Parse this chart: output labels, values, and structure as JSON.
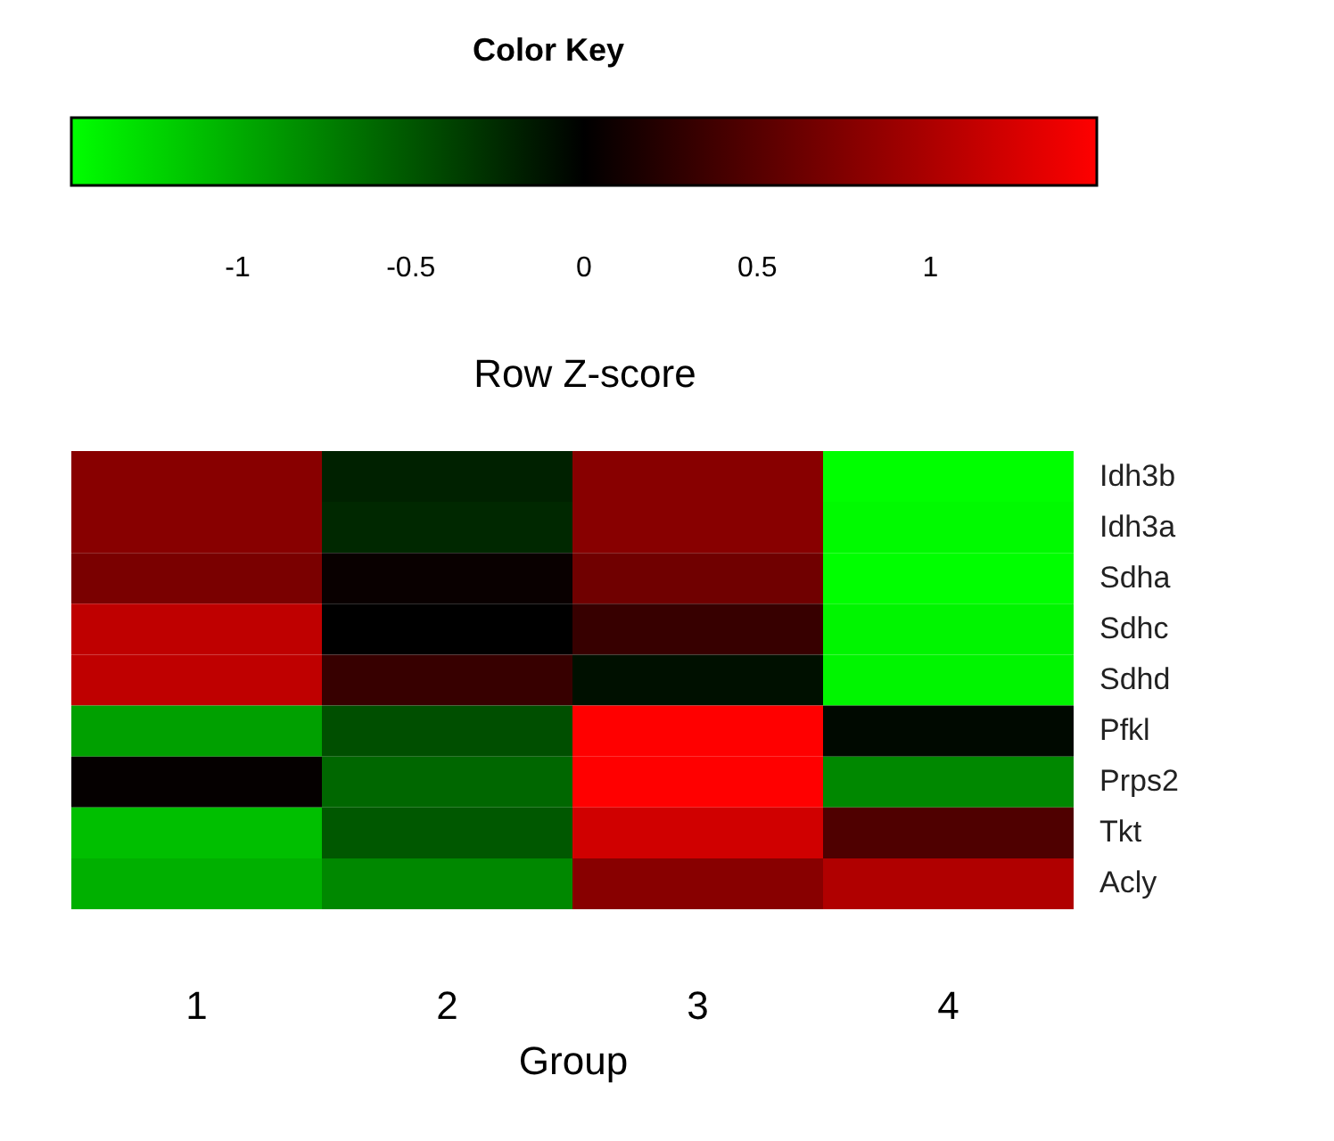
{
  "chart_data": {
    "type": "heatmap",
    "title": "Color Key",
    "clabel": "Row Z-score",
    "xlabel": "Group",
    "categories": [
      "1",
      "2",
      "3",
      "4"
    ],
    "y_categories": [
      "Idh3b",
      "Idh3a",
      "Sdha",
      "Sdhc",
      "Sdhd",
      "Pfkl",
      "Prps2",
      "Tkt",
      "Acly"
    ],
    "cells": [
      [
        0.79,
        -0.19,
        0.79,
        -1.48
      ],
      [
        0.79,
        -0.23,
        0.79,
        -1.45
      ],
      [
        0.71,
        0.05,
        0.65,
        -1.48
      ],
      [
        1.11,
        0,
        0.32,
        -1.42
      ],
      [
        1.11,
        0.32,
        -0.09,
        -1.42
      ],
      [
        -0.93,
        -0.46,
        1.48,
        -0.05
      ],
      [
        0.03,
        -0.6,
        1.48,
        -0.79
      ],
      [
        -1.11,
        -0.51,
        1.21,
        0.46
      ],
      [
        -1.02,
        -0.79,
        0.79,
        1.02
      ]
    ],
    "clim": [
      -1.48,
      1.48
    ],
    "cticks": [
      -1,
      -0.5,
      0,
      0.5,
      1
    ]
  }
}
